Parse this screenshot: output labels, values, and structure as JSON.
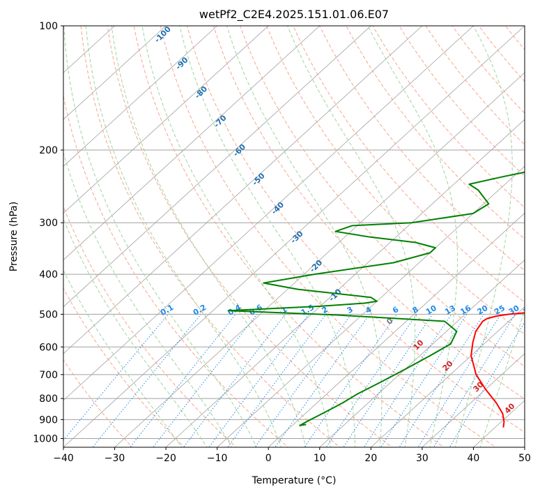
{
  "chart_data": {
    "type": "line",
    "chart_kind": "skew-T log-P diagram",
    "title": "wetPf2_C2E4.2025.151.01.06.E07",
    "xlabel": "Temperature (°C)",
    "ylabel": "Pressure (hPa)",
    "xlim": [
      -40,
      50
    ],
    "ylim": [
      1050,
      100
    ],
    "y_scale": "log",
    "x_ticks": [
      -40,
      -30,
      -20,
      -10,
      0,
      10,
      20,
      30,
      40,
      50
    ],
    "y_ticks": [
      100,
      200,
      300,
      400,
      500,
      600,
      700,
      800,
      900,
      1000
    ],
    "grid": true,
    "series": [
      {
        "role": "temperature",
        "color": "#ff0000",
        "points": [
          [
            41.6,
            940
          ],
          [
            40.5,
            910
          ],
          [
            38.5,
            870
          ],
          [
            35,
            820
          ],
          [
            30,
            760
          ],
          [
            25,
            700
          ],
          [
            20,
            630
          ],
          [
            17.5,
            585
          ],
          [
            15.7,
            550
          ],
          [
            14.9,
            520
          ],
          [
            15.2,
            512
          ],
          [
            16.5,
            505
          ],
          [
            18.5,
            500
          ],
          [
            22,
            495
          ],
          [
            26.5,
            490
          ],
          [
            26.8,
            487
          ],
          [
            25,
            470
          ],
          [
            24,
            455
          ],
          [
            23.5,
            430
          ],
          [
            22.5,
            410
          ],
          [
            21,
            380
          ],
          [
            19,
            355
          ],
          [
            16.5,
            320
          ],
          [
            15,
            300
          ],
          [
            13,
            270
          ],
          [
            11,
            240
          ],
          [
            9.5,
            215
          ],
          [
            8,
            200
          ],
          [
            6,
            185
          ],
          [
            4.5,
            172
          ],
          [
            3,
            160
          ],
          [
            2,
            147
          ],
          [
            1,
            135
          ],
          [
            0,
            122
          ],
          [
            -1.5,
            110
          ],
          [
            -2,
            100
          ]
        ]
      },
      {
        "role": "dewpoint",
        "color": "#008000",
        "points": [
          [
            2.5,
            925
          ],
          [
            1.5,
            930
          ],
          [
            2,
            910
          ],
          [
            3,
            880
          ],
          [
            4,
            850
          ],
          [
            5,
            820
          ],
          [
            6,
            780
          ],
          [
            8,
            730
          ],
          [
            10,
            680
          ],
          [
            12,
            630
          ],
          [
            13.5,
            590
          ],
          [
            12,
            550
          ],
          [
            7.5,
            520
          ],
          [
            -15,
            502
          ],
          [
            -37,
            490
          ],
          [
            -20,
            478
          ],
          [
            -12,
            470
          ],
          [
            -10,
            465
          ],
          [
            -12,
            455
          ],
          [
            -28,
            435
          ],
          [
            -36,
            420
          ],
          [
            -28,
            400
          ],
          [
            -15,
            375
          ],
          [
            -10,
            355
          ],
          [
            -10,
            345
          ],
          [
            -15,
            335
          ],
          [
            -25,
            325
          ],
          [
            -33,
            315
          ],
          [
            -31,
            305
          ],
          [
            -20,
            300
          ],
          [
            -10,
            285
          ],
          [
            -9,
            270
          ],
          [
            -14,
            250
          ],
          [
            -17,
            242
          ],
          [
            -12,
            232
          ],
          [
            -5,
            220
          ],
          [
            -3,
            200
          ],
          [
            -1,
            185
          ],
          [
            2,
            170
          ],
          [
            4,
            160
          ],
          [
            5,
            152
          ],
          [
            4,
            140
          ],
          [
            2,
            130
          ],
          [
            0,
            115
          ],
          [
            -1,
            100
          ]
        ]
      }
    ],
    "annotations": {
      "mixing_ratio_labels": [
        "0.1",
        "0.2",
        "0.4",
        "0.6",
        "1",
        "1.5",
        "2",
        "3",
        "4",
        "6",
        "8",
        "10",
        "13",
        "16",
        "20",
        "25",
        "30",
        "36"
      ],
      "dry_adiabat_labels": [
        "-100",
        "-90",
        "-80",
        "-70",
        "-60",
        "-50",
        "-40",
        "-30",
        "-20",
        "-10"
      ],
      "moist_adiabat_labels": [
        "0",
        "10",
        "20",
        "30",
        "40"
      ]
    },
    "colors": {
      "temperature": "#ff0000",
      "dewpoint": "#008000",
      "isotherms": "#a0a0a0",
      "dry_adiabats": "#f7a58a",
      "moist_adiabats": "#9fd49f",
      "mixing_ratio": "#1e88e5",
      "dry_labels": "#1f6fb0",
      "moist_labels": "#d22222"
    }
  }
}
